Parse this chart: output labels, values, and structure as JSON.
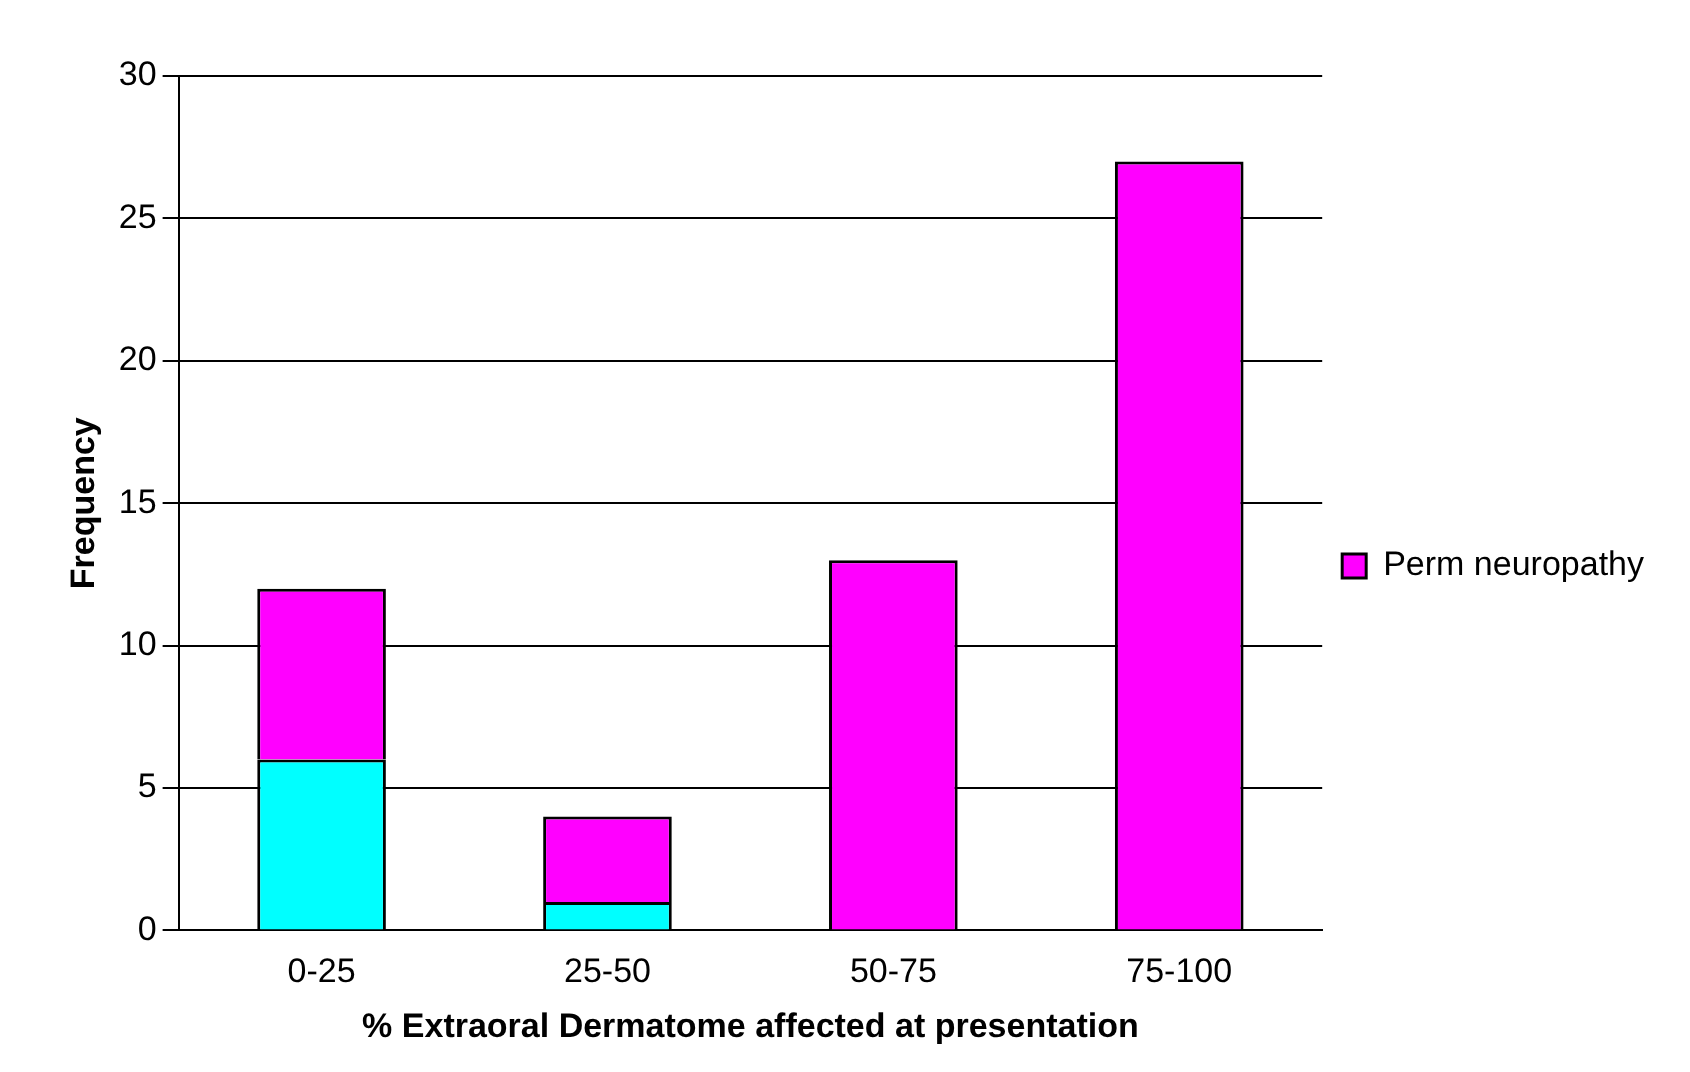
{
  "chart_data": {
    "type": "bar",
    "xlabel": "% Extraoral Dermatome affected at presentation",
    "ylabel": "Frequency",
    "categories": [
      "0-25",
      "25-50",
      "50-75",
      "75-100"
    ],
    "stacked": true,
    "series": [
      {
        "color": "#00ffff",
        "values": [
          6,
          1,
          0,
          0
        ]
      },
      {
        "name": "Perm neuropathy",
        "color": "#ff00ff",
        "values": [
          6,
          3,
          13,
          27
        ]
      }
    ],
    "ylim": [
      0,
      30
    ],
    "yticks": [
      0,
      5,
      10,
      15,
      20,
      25,
      30
    ],
    "grid": "y",
    "legend": "right"
  }
}
